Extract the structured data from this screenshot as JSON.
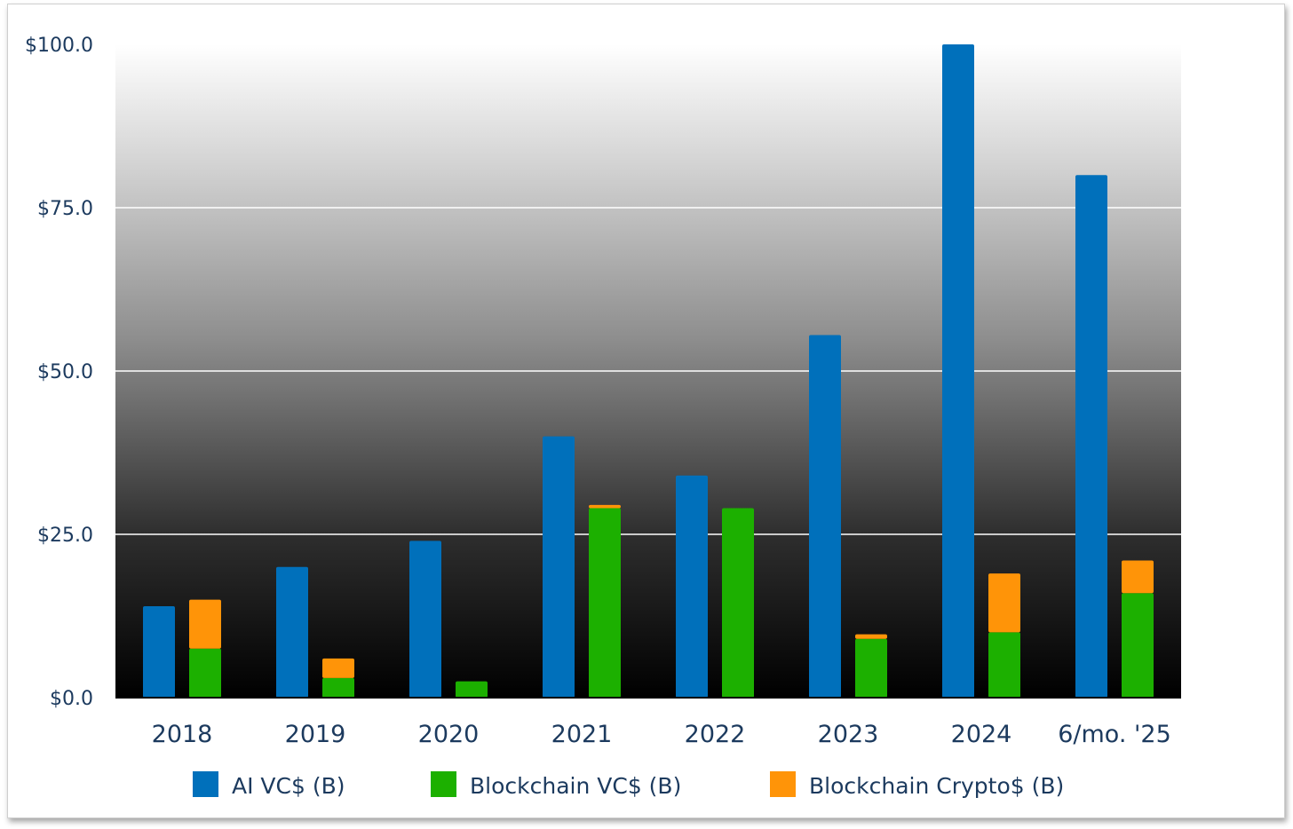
{
  "chart_data": {
    "type": "bar",
    "stacking": "second group stacked (Blockchain VC$ + Blockchain Crypto$)",
    "categories": [
      "2018",
      "2019",
      "2020",
      "2021",
      "2022",
      "2023",
      "2024",
      "6/mo. '25"
    ],
    "series": [
      {
        "name": "AI VC$ (B)",
        "color": "#0070bb",
        "group": "ai",
        "values": [
          14,
          20,
          24,
          40,
          34,
          55.5,
          100,
          80
        ]
      },
      {
        "name": "Blockchain VC$ (B)",
        "color": "#1cb000",
        "group": "blockchain",
        "values": [
          7.5,
          3,
          2.5,
          29,
          29,
          9,
          10,
          16
        ]
      },
      {
        "name": "Blockchain Crypto$ (B)",
        "color": "#ff9408",
        "group": "blockchain",
        "values": [
          7.5,
          3,
          0,
          0.5,
          0,
          0.7,
          9,
          5
        ]
      }
    ],
    "ylim": [
      0,
      100
    ],
    "yticks": [
      0,
      25,
      50,
      75,
      100
    ],
    "ytick_labels": [
      "$0.0",
      "$25.0",
      "$50.0",
      "$75.0",
      "$100.0"
    ],
    "grid": true,
    "legend_position": "bottom",
    "title": "",
    "xlabel": "",
    "ylabel": ""
  }
}
